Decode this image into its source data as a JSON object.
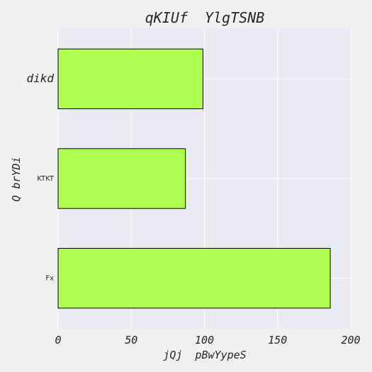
{
  "chart_data": {
    "type": "bar",
    "orientation": "horizontal",
    "title": "qKIUf  YlgTSNB",
    "xlabel": "jQj  pBwYypeS",
    "ylabel": "Q brYDi",
    "categories": [
      "dikd",
      "KTKT",
      "Fx"
    ],
    "values": [
      99,
      87,
      186
    ],
    "xlim": [
      0,
      200
    ],
    "xticks": [
      0,
      50,
      100,
      150,
      200
    ],
    "grid": true,
    "bar_color": "#adff4f",
    "edge_color": "#000000",
    "plot_background": "#eaeaf2",
    "figure_background": "#f0f0f0"
  }
}
